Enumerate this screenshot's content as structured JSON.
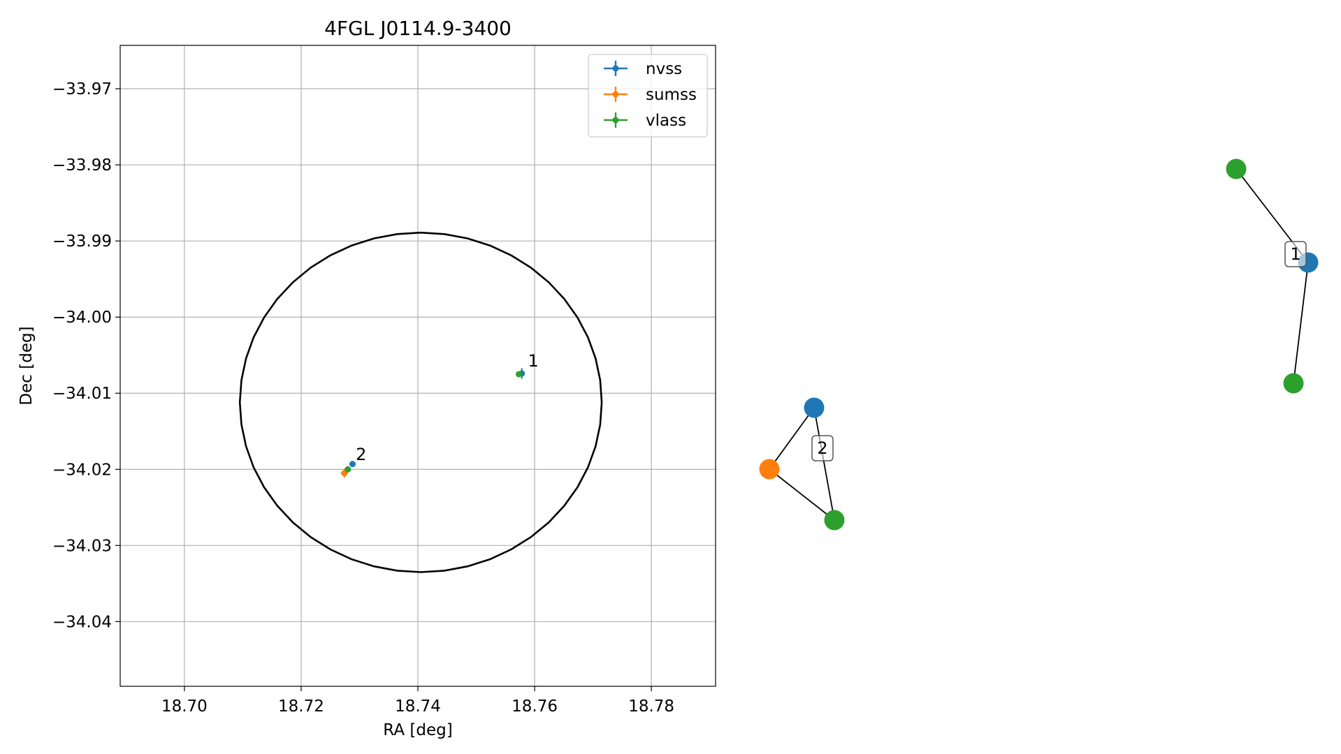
{
  "chart_data": [
    {
      "type": "scatter",
      "title": "4FGL J0114.9-3400",
      "xlabel": "RA [deg]",
      "ylabel": "Dec [deg]",
      "xlim": [
        18.689,
        18.791
      ],
      "ylim": [
        -34.0485,
        -33.9643
      ],
      "grid": true,
      "legend_position": "top-right",
      "x_ticks": [
        18.7,
        18.72,
        18.74,
        18.76,
        18.78
      ],
      "x_tick_labels": [
        "18.70",
        "18.72",
        "18.74",
        "18.76",
        "18.78"
      ],
      "y_ticks": [
        -33.97,
        -33.98,
        -33.99,
        -34.0,
        -34.01,
        -34.02,
        -34.03,
        -34.04
      ],
      "y_tick_labels": [
        "−33.97",
        "−33.98",
        "−33.99",
        "−34.00",
        "−34.01",
        "−34.02",
        "−34.03",
        "−34.04"
      ],
      "series": [
        {
          "name": "nvss",
          "color": "#1f77b4",
          "points": [
            {
              "x": 18.7578,
              "y": -34.0074,
              "xerr": 0.0003,
              "yerr": 0.0007
            },
            {
              "x": 18.7288,
              "y": -34.0193,
              "xerr": 0.0002,
              "yerr": 0.0002
            }
          ]
        },
        {
          "name": "sumss",
          "color": "#ff7f0e",
          "points": [
            {
              "x": 18.7274,
              "y": -34.0205,
              "xerr": 0.0006,
              "yerr": 0.0006
            }
          ]
        },
        {
          "name": "vlass",
          "color": "#2ca02c",
          "points": [
            {
              "x": 18.7573,
              "y": -34.0075,
              "xerr": 0.0002,
              "yerr": 0.0002
            },
            {
              "x": 18.728,
              "y": -34.02,
              "xerr": 0.0002,
              "yerr": 0.0002
            }
          ]
        }
      ],
      "annotations": [
        {
          "text": "1",
          "x": 18.7585,
          "y": -34.0065
        },
        {
          "text": "2",
          "x": 18.729,
          "y": -34.0188
        }
      ],
      "ellipse": {
        "center": [
          18.7405,
          -34.0112
        ],
        "semi_axis_ra": 0.031,
        "semi_axis_dec": 0.0223,
        "angle_deg": 0,
        "color": "#000000"
      }
    },
    {
      "type": "network",
      "groups": [
        {
          "label": "1",
          "nodes": [
            {
              "id": "a",
              "color": "#2ca02c"
            },
            {
              "id": "b",
              "color": "#1f77b4"
            },
            {
              "id": "c",
              "color": "#2ca02c"
            }
          ],
          "edges": [
            [
              "a",
              "b"
            ],
            [
              "b",
              "c"
            ]
          ]
        },
        {
          "label": "2",
          "nodes": [
            {
              "id": "d",
              "color": "#1f77b4"
            },
            {
              "id": "e",
              "color": "#ff7f0e"
            },
            {
              "id": "f",
              "color": "#2ca02c"
            }
          ],
          "edges": [
            [
              "d",
              "e"
            ],
            [
              "d",
              "f"
            ],
            [
              "e",
              "f"
            ]
          ]
        }
      ]
    }
  ]
}
